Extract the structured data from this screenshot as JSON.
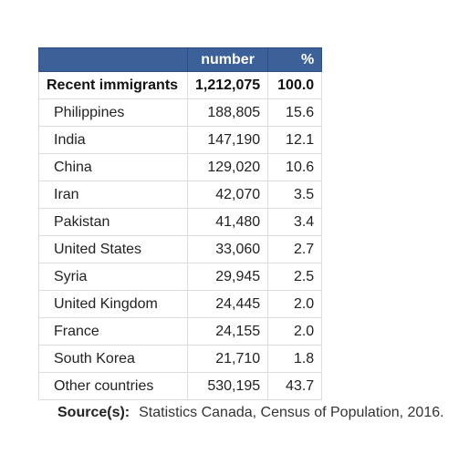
{
  "table": {
    "headers": {
      "blank": "",
      "number": "number",
      "percent": "%"
    },
    "total": {
      "label": "Recent immigrants",
      "number": "1,212,075",
      "percent": "100.0"
    },
    "rows": [
      {
        "label": "Philippines",
        "number": "188,805",
        "percent": "15.6"
      },
      {
        "label": "India",
        "number": "147,190",
        "percent": "12.1"
      },
      {
        "label": "China",
        "number": "129,020",
        "percent": "10.6"
      },
      {
        "label": "Iran",
        "number": "42,070",
        "percent": "3.5"
      },
      {
        "label": "Pakistan",
        "number": "41,480",
        "percent": "3.4"
      },
      {
        "label": "United States",
        "number": "33,060",
        "percent": "2.7"
      },
      {
        "label": "Syria",
        "number": "29,945",
        "percent": "2.5"
      },
      {
        "label": "United Kingdom",
        "number": "24,445",
        "percent": "2.0"
      },
      {
        "label": "France",
        "number": "24,155",
        "percent": "2.0"
      },
      {
        "label": "South Korea",
        "number": "21,710",
        "percent": "1.8"
      },
      {
        "label": "Other countries",
        "number": "530,195",
        "percent": "43.7"
      }
    ]
  },
  "source": {
    "label": "Source(s):",
    "text": "Statistics Canada, Census of Population, 2016."
  }
}
